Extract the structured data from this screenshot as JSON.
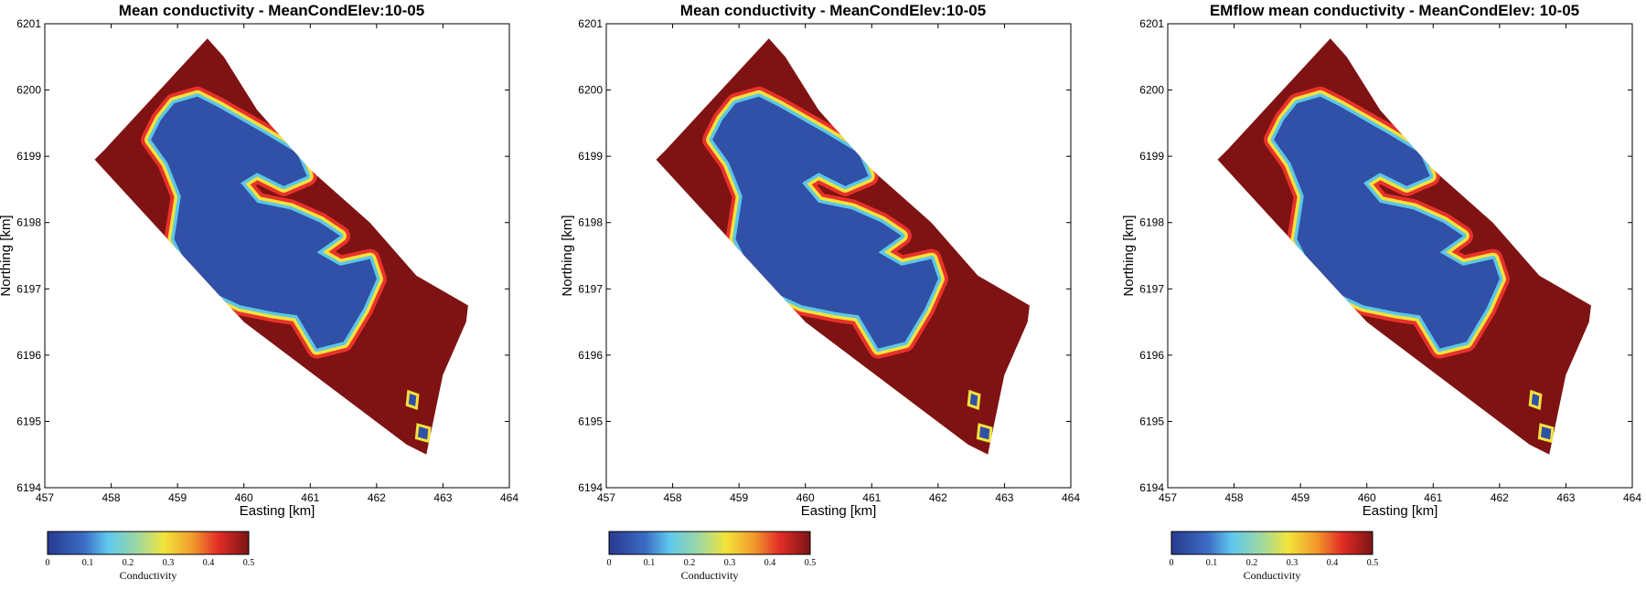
{
  "chart_data": [
    {
      "type": "heatmap",
      "title": "Mean conductivity - MeanCondElev:10-05",
      "xlabel": "Easting [km]",
      "ylabel": "Northing [km]",
      "xlim": [
        457,
        464
      ],
      "ylim": [
        6194,
        6201
      ],
      "xticks": [
        "457",
        "458",
        "459",
        "460",
        "461",
        "462",
        "463",
        "464"
      ],
      "yticks": [
        "6194",
        "6195",
        "6196",
        "6197",
        "6198",
        "6199",
        "6200",
        "6201"
      ],
      "colorbar": {
        "label": "Conductivity",
        "range": [
          0,
          0.5
        ],
        "ticks": [
          "0",
          "0.1",
          "0.2",
          "0.3",
          "0.4",
          "0.5"
        ]
      }
    },
    {
      "type": "heatmap",
      "title": "Mean conductivity - MeanCondElev:10-05",
      "xlabel": "Easting [km]",
      "ylabel": "Northing [km]",
      "xlim": [
        457,
        464
      ],
      "ylim": [
        6194,
        6201
      ],
      "xticks": [
        "457",
        "458",
        "459",
        "460",
        "461",
        "462",
        "463",
        "464"
      ],
      "yticks": [
        "6194",
        "6195",
        "6196",
        "6197",
        "6198",
        "6199",
        "6200",
        "6201"
      ],
      "colorbar": {
        "label": "Conductivity",
        "range": [
          0,
          0.5
        ],
        "ticks": [
          "0",
          "0.1",
          "0.2",
          "0.3",
          "0.4",
          "0.5"
        ]
      }
    },
    {
      "type": "heatmap",
      "title": "EMflow mean conductivity - MeanCondElev: 10-05",
      "xlabel": "Easting [km]",
      "ylabel": "Northing [km]",
      "xlim": [
        457,
        464
      ],
      "ylim": [
        6194,
        6201
      ],
      "xticks": [
        "457",
        "458",
        "459",
        "460",
        "461",
        "462",
        "463",
        "464"
      ],
      "yticks": [
        "6194",
        "6195",
        "6196",
        "6197",
        "6198",
        "6199",
        "6200",
        "6201"
      ],
      "colorbar": {
        "label": "Conductivity",
        "range": [
          0,
          0.5
        ],
        "ticks": [
          "0",
          "0.1",
          "0.2",
          "0.3",
          "0.4",
          "0.5"
        ]
      }
    }
  ],
  "colors": {
    "high_conductivity": "#7f1313",
    "low_conductivity": "#3150a8",
    "mid_cyan": "#5cc6e8",
    "mid_yellow": "#f4e23a",
    "mid_red": "#e8322a"
  }
}
